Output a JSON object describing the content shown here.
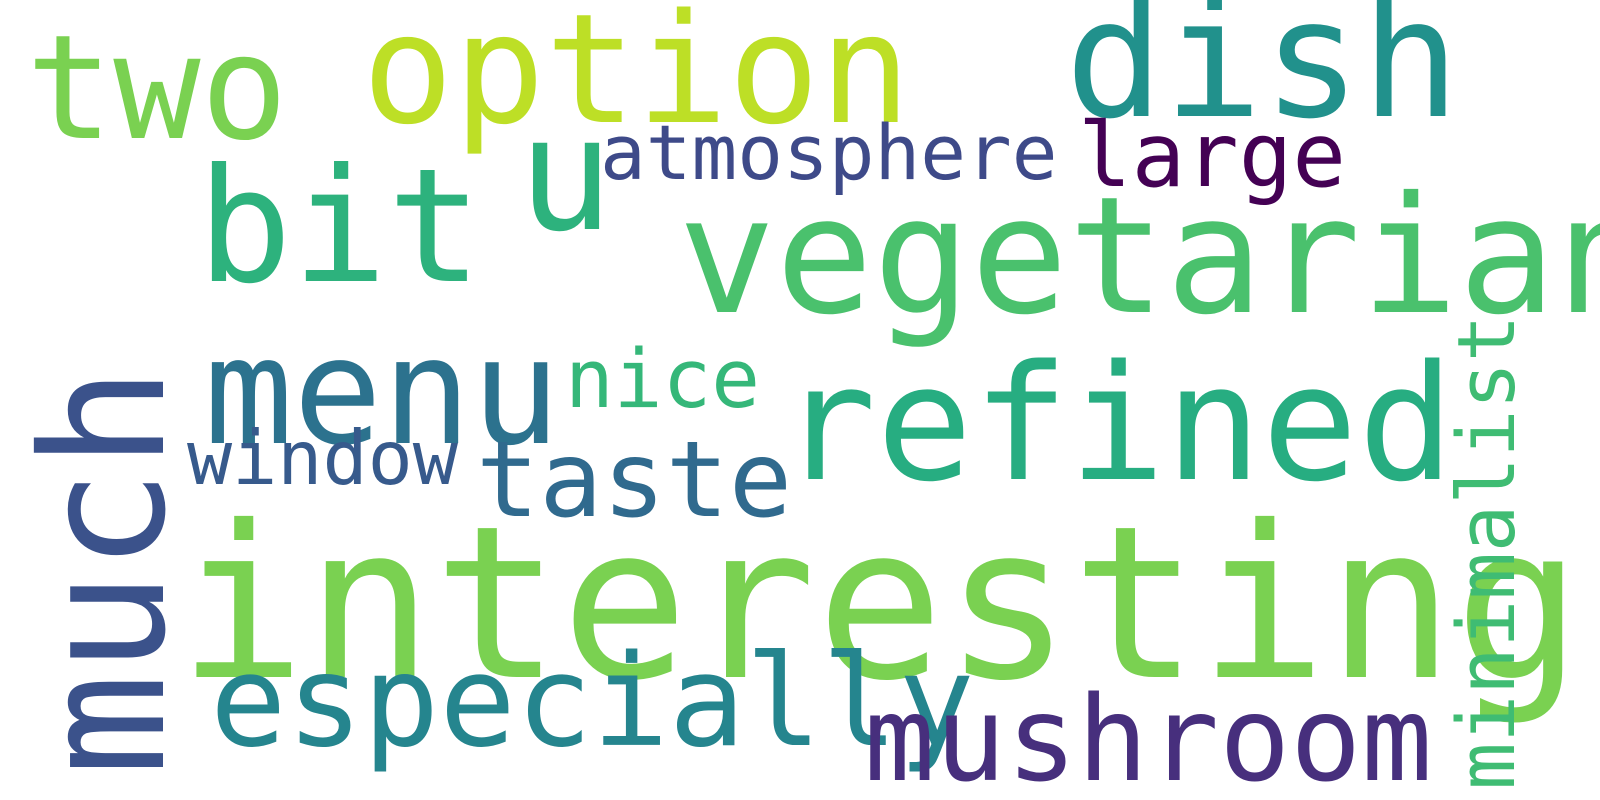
{
  "words": [
    {
      "key": "interesting",
      "text": "interesting",
      "color": "#7ad151"
    },
    {
      "key": "much",
      "text": "much",
      "color": "#3b528b"
    },
    {
      "key": "vegetarian",
      "text": "vegetarian",
      "color": "#4ac16d"
    },
    {
      "key": "refined",
      "text": "refined",
      "color": "#27ad81"
    },
    {
      "key": "menu",
      "text": "menu",
      "color": "#2c728e"
    },
    {
      "key": "option",
      "text": "option",
      "color": "#bddf26"
    },
    {
      "key": "dish",
      "text": "dish",
      "color": "#21918c"
    },
    {
      "key": "two",
      "text": "two",
      "color": "#7ad151"
    },
    {
      "key": "bit",
      "text": "bit",
      "color": "#2db27d"
    },
    {
      "key": "u",
      "text": "u",
      "color": "#2db27d"
    },
    {
      "key": "especially",
      "text": "especially",
      "color": "#25858e"
    },
    {
      "key": "mushroom",
      "text": "mushroom",
      "color": "#472f7d"
    },
    {
      "key": "taste",
      "text": "taste",
      "color": "#306a8e"
    },
    {
      "key": "minimalist",
      "text": "minimalist",
      "color": "#3fbc73"
    },
    {
      "key": "atmosphere",
      "text": "atmosphere",
      "color": "#3e4a89"
    },
    {
      "key": "large",
      "text": "large",
      "color": "#440154"
    },
    {
      "key": "nice",
      "text": "nice",
      "color": "#35b779"
    },
    {
      "key": "window",
      "text": "window",
      "color": "#375a8c"
    }
  ]
}
